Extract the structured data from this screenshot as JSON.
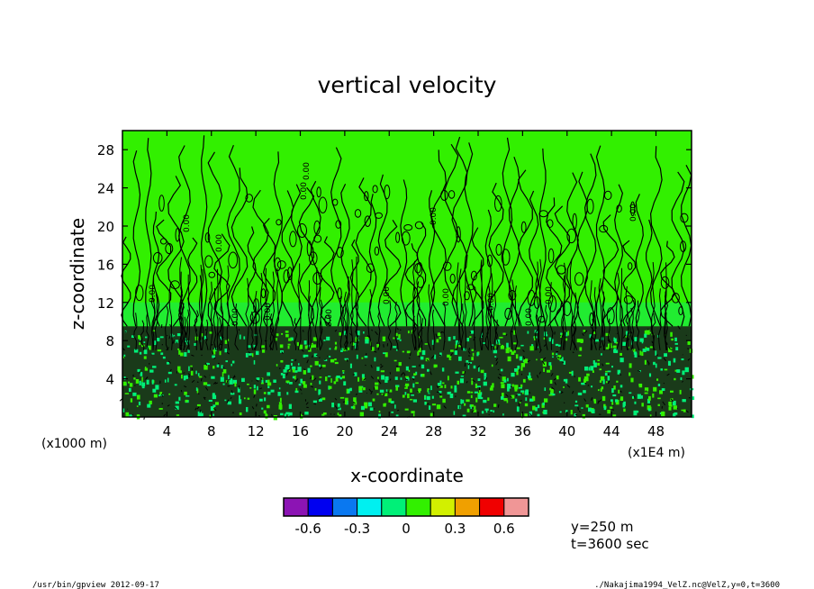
{
  "chart_data": {
    "type": "heatmap",
    "title": "vertical velocity",
    "xlabel": "x-coordinate",
    "ylabel": "z-coordinate",
    "x_unit_left": "(x1000 m)",
    "x_unit_right": "(x1E4 m)",
    "xlim": [
      0,
      51.2
    ],
    "ylim": [
      0,
      30
    ],
    "x_ticks": [
      4,
      8,
      12,
      16,
      20,
      24,
      28,
      32,
      36,
      40,
      44,
      48
    ],
    "y_ticks": [
      4,
      8,
      12,
      16,
      20,
      24,
      28
    ],
    "x_tick_labels": [
      "4",
      "8",
      "12",
      "16",
      "20",
      "24",
      "28",
      "32",
      "36",
      "40",
      "44",
      "48"
    ],
    "y_tick_labels": [
      "4",
      "8",
      "12",
      "16",
      "20",
      "24",
      "28"
    ],
    "contour_label": "0.00",
    "colorbar": {
      "levels": [
        -0.75,
        -0.6,
        -0.45,
        -0.3,
        -0.15,
        0,
        0.15,
        0.3,
        0.45,
        0.6,
        0.75
      ],
      "colors": [
        "#8c14b4",
        "#0000f0",
        "#0a78f0",
        "#00f0f0",
        "#00f078",
        "#32f000",
        "#d2f000",
        "#f0a000",
        "#f00000",
        "#f09696"
      ],
      "tick_labels": [
        "-0.6",
        "-0.3",
        "0",
        "0.3",
        "0.6"
      ],
      "tick_values": [
        -0.6,
        -0.3,
        0,
        0.3,
        0.6
      ]
    },
    "annotations": [
      "y=250 m",
      "t=3600 sec"
    ]
  },
  "footer": {
    "left": "/usr/bin/gpview   2012-09-17",
    "right": "./Nakajima1994_VelZ.nc@VelZ,y=0,t=3600"
  }
}
